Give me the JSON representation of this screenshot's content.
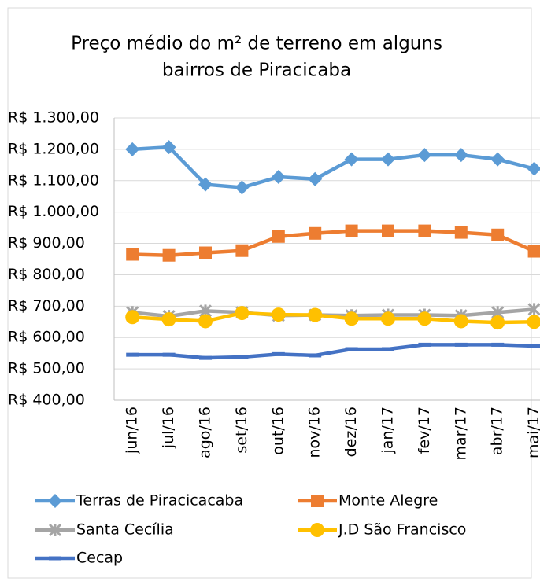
{
  "chart_data": {
    "type": "line",
    "title": [
      "Preço médio do m² de terreno em alguns",
      "bairros de Piracicaba"
    ],
    "categories": [
      "jun/16",
      "jul/16",
      "ago/16",
      "set/16",
      "out/16",
      "nov/16",
      "dez/16",
      "jan/17",
      "fev/17",
      "mar/17",
      "abr/17",
      "mai/17"
    ],
    "series": [
      {
        "name": "Terras de Piracicacaba",
        "color": "#5B9BD5",
        "marker": "diamond",
        "values": [
          1200,
          1207,
          1088,
          1078,
          1112,
          1105,
          1168,
          1168,
          1182,
          1182,
          1168,
          1138
        ]
      },
      {
        "name": "Monte Alegre",
        "color": "#ED7D31",
        "marker": "square",
        "values": [
          865,
          862,
          870,
          877,
          922,
          932,
          940,
          940,
          940,
          935,
          927,
          875
        ]
      },
      {
        "name": "Santa Cecília",
        "color": "#A5A5A5",
        "marker": "star",
        "values": [
          680,
          668,
          685,
          680,
          670,
          672,
          670,
          672,
          672,
          670,
          680,
          690
        ]
      },
      {
        "name": "J.D São Francisco",
        "color": "#FFC000",
        "marker": "circle",
        "values": [
          665,
          658,
          652,
          678,
          673,
          672,
          660,
          660,
          660,
          652,
          648,
          650
        ]
      },
      {
        "name": "Cecap",
        "color": "#4472C4",
        "marker": "dash",
        "values": [
          545,
          545,
          535,
          538,
          547,
          543,
          563,
          563,
          577,
          577,
          577,
          573
        ]
      }
    ],
    "ylim": [
      400,
      1300
    ],
    "yticks": [
      {
        "value": 400,
        "label": "R$ 400,00"
      },
      {
        "value": 500,
        "label": "R$ 500,00"
      },
      {
        "value": 600,
        "label": "R$ 600,00"
      },
      {
        "value": 700,
        "label": "R$ 700,00"
      },
      {
        "value": 800,
        "label": "R$ 800,00"
      },
      {
        "value": 900,
        "label": "R$ 900,00"
      },
      {
        "value": 1000,
        "label": "R$ 1.000,00"
      },
      {
        "value": 1100,
        "label": "R$ 1.100,00"
      },
      {
        "value": 1200,
        "label": "R$ 1.200,00"
      },
      {
        "value": 1300,
        "label": "R$ 1.300,00"
      }
    ],
    "grid": true,
    "legend": "bottom"
  }
}
